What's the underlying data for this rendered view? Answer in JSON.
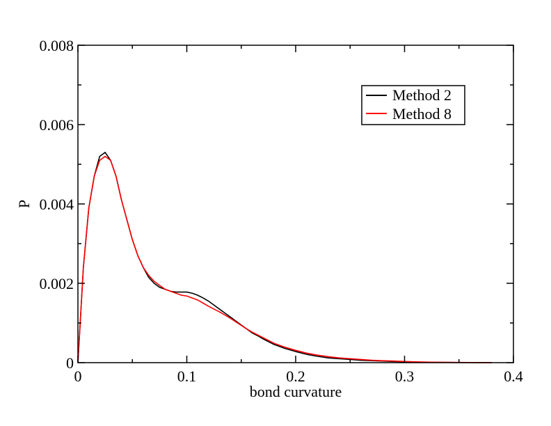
{
  "chart_data": {
    "type": "line",
    "xlabel": "bond curvature",
    "ylabel": "P",
    "xlim": [
      0,
      0.4
    ],
    "ylim": [
      0,
      0.008
    ],
    "x_ticks": [
      0,
      0.1,
      0.2,
      0.3,
      0.4
    ],
    "x_tick_labels": [
      "0",
      "0.1",
      "0.2",
      "0.3",
      "0.4"
    ],
    "y_ticks": [
      0,
      0.002,
      0.004,
      0.006,
      0.008
    ],
    "y_tick_labels": [
      "0",
      "0.002",
      "0.004",
      "0.006",
      "0.008"
    ],
    "grid": false,
    "legend_position": "top-right",
    "series": [
      {
        "name": "Method 2",
        "color": "#000000",
        "x": [
          0,
          0.005,
          0.01,
          0.015,
          0.02,
          0.025,
          0.03,
          0.035,
          0.04,
          0.045,
          0.05,
          0.055,
          0.06,
          0.065,
          0.07,
          0.075,
          0.08,
          0.085,
          0.09,
          0.095,
          0.1,
          0.105,
          0.11,
          0.115,
          0.12,
          0.125,
          0.13,
          0.135,
          0.14,
          0.145,
          0.15,
          0.155,
          0.16,
          0.165,
          0.17,
          0.175,
          0.18,
          0.19,
          0.2,
          0.21,
          0.22,
          0.23,
          0.24,
          0.25,
          0.26,
          0.27,
          0.28,
          0.29,
          0.3,
          0.31,
          0.32,
          0.33,
          0.34,
          0.35,
          0.36,
          0.37,
          0.38
        ],
        "y": [
          0,
          0.0024,
          0.0039,
          0.0047,
          0.0052,
          0.0053,
          0.0051,
          0.0047,
          0.0041,
          0.0036,
          0.0031,
          0.0027,
          0.0024,
          0.00215,
          0.002,
          0.0019,
          0.00185,
          0.0018,
          0.00178,
          0.00178,
          0.00178,
          0.00175,
          0.0017,
          0.00163,
          0.00155,
          0.00145,
          0.00135,
          0.00125,
          0.00115,
          0.00105,
          0.00095,
          0.00085,
          0.00075,
          0.00068,
          0.0006,
          0.00053,
          0.00046,
          0.00036,
          0.00028,
          0.00021,
          0.00016,
          0.00012,
          0.0001,
          8e-05,
          6e-05,
          5e-05,
          4e-05,
          3e-05,
          2e-05,
          1.5e-05,
          1e-05,
          8e-06,
          5e-06,
          4e-06,
          3e-06,
          2e-06,
          1e-06
        ]
      },
      {
        "name": "Method 8",
        "color": "#ff0000",
        "x": [
          0,
          0.005,
          0.01,
          0.015,
          0.02,
          0.025,
          0.03,
          0.035,
          0.04,
          0.045,
          0.05,
          0.055,
          0.06,
          0.065,
          0.07,
          0.075,
          0.08,
          0.085,
          0.09,
          0.095,
          0.1,
          0.105,
          0.11,
          0.115,
          0.12,
          0.125,
          0.13,
          0.135,
          0.14,
          0.145,
          0.15,
          0.155,
          0.16,
          0.165,
          0.17,
          0.175,
          0.18,
          0.19,
          0.2,
          0.21,
          0.22,
          0.23,
          0.24,
          0.25,
          0.26,
          0.27,
          0.28,
          0.29,
          0.3,
          0.31,
          0.32,
          0.33,
          0.34,
          0.35,
          0.36,
          0.37,
          0.38
        ],
        "y": [
          0,
          0.0024,
          0.0039,
          0.0047,
          0.0051,
          0.0052,
          0.0051,
          0.0047,
          0.0041,
          0.0036,
          0.0031,
          0.0027,
          0.0024,
          0.0022,
          0.00205,
          0.00195,
          0.00185,
          0.0018,
          0.00175,
          0.0017,
          0.00168,
          0.00163,
          0.00158,
          0.0015,
          0.00142,
          0.00135,
          0.00128,
          0.0012,
          0.00112,
          0.00103,
          0.00094,
          0.00085,
          0.00077,
          0.0007,
          0.00063,
          0.00056,
          0.00049,
          0.00039,
          0.00031,
          0.00024,
          0.00019,
          0.00015,
          0.00012,
          0.0001,
          8e-05,
          6e-05,
          5e-05,
          4e-05,
          3e-05,
          2e-05,
          1.5e-05,
          1e-05,
          8e-06,
          5e-06,
          4e-06,
          2e-06,
          1e-06
        ]
      }
    ]
  }
}
